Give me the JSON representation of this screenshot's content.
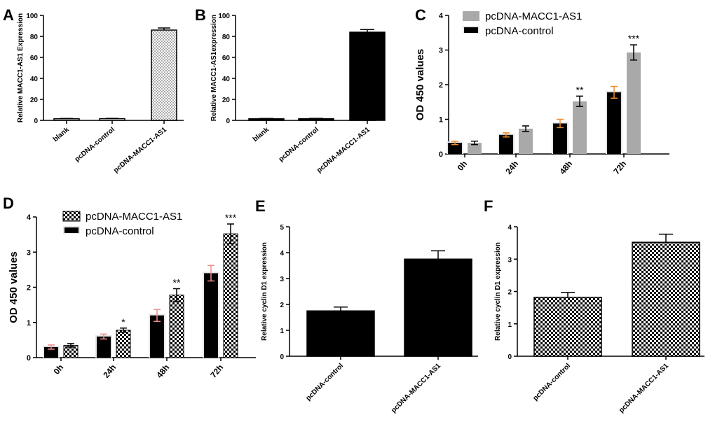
{
  "figure": {
    "panels": [
      "A",
      "B",
      "C",
      "D",
      "E",
      "F"
    ]
  },
  "colors": {
    "black_bar": "#000000",
    "gray_bar": "#a9a9a9",
    "orange_err": "#f28c28",
    "pink_err": "#f08c8c"
  },
  "chart_data": [
    {
      "id": "A",
      "type": "bar",
      "title": "",
      "ylabel": "Relative MACC1-AS1 Expression",
      "categories": [
        "blank",
        "pcDNA-control",
        "pcDNA-MACC1-AS1"
      ],
      "values": [
        1.5,
        1.6,
        86
      ],
      "errors": [
        0.3,
        0.3,
        2
      ],
      "ylim": [
        0,
        100
      ],
      "yticks": [
        "0",
        "20",
        "40",
        "60",
        "80",
        "100"
      ],
      "fill": "dotted"
    },
    {
      "id": "B",
      "type": "bar",
      "title": "",
      "ylabel": "Relative MACC1-AS1expression",
      "categories": [
        "blank",
        "pcDNA-control",
        "pcDNA-MACC1-AS1"
      ],
      "values": [
        1.5,
        1.6,
        84
      ],
      "errors": [
        0.3,
        0.3,
        2.5
      ],
      "ylim": [
        0,
        100
      ],
      "yticks": [
        "0",
        "20",
        "40",
        "60",
        "80",
        "100"
      ],
      "fill": "solid"
    },
    {
      "id": "C",
      "type": "bar",
      "title": "",
      "ylabel": "OD 450 values",
      "categories": [
        "0h",
        "24h",
        "48h",
        "72h"
      ],
      "legend": [
        "pcDNA-MACC1-AS1",
        "pcDNA-control"
      ],
      "series": [
        {
          "name": "pcDNA-control",
          "values": [
            0.32,
            0.55,
            0.88,
            1.78
          ],
          "errors": [
            0.05,
            0.06,
            0.12,
            0.17
          ]
        },
        {
          "name": "pcDNA-MACC1-AS1",
          "values": [
            0.32,
            0.73,
            1.52,
            2.93
          ],
          "errors": [
            0.05,
            0.08,
            0.15,
            0.22
          ]
        }
      ],
      "significance": [
        "",
        "",
        "**",
        "***"
      ],
      "ylim": [
        0,
        4
      ],
      "yticks": [
        "0",
        "1",
        "2",
        "3",
        "4"
      ]
    },
    {
      "id": "D",
      "type": "bar",
      "title": "",
      "ylabel": "OD 450 values",
      "categories": [
        "0h",
        "24h",
        "48h",
        "72h"
      ],
      "legend": [
        "pcDNA-MACC1-AS1",
        "pcDNA-control"
      ],
      "series": [
        {
          "name": "pcDNA-control",
          "values": [
            0.3,
            0.6,
            1.2,
            2.4
          ],
          "errors": [
            0.06,
            0.07,
            0.17,
            0.22
          ]
        },
        {
          "name": "pcDNA-MACC1-AS1",
          "values": [
            0.35,
            0.78,
            1.78,
            3.52
          ],
          "errors": [
            0.05,
            0.06,
            0.18,
            0.28
          ]
        }
      ],
      "significance": [
        "",
        "*",
        "**",
        "***"
      ],
      "ylim": [
        0,
        4
      ],
      "yticks": [
        "0",
        "1",
        "2",
        "3",
        "4"
      ]
    },
    {
      "id": "E",
      "type": "bar",
      "title": "",
      "ylabel": "Relative cyclin D1 expression",
      "categories": [
        "pcDNA-control",
        "pcDNA-MACC1-AS1"
      ],
      "values": [
        1.75,
        3.75
      ],
      "errors": [
        0.15,
        0.32
      ],
      "ylim": [
        0,
        5
      ],
      "yticks": [
        "0",
        "1",
        "2",
        "3",
        "4",
        "5"
      ],
      "fill": "solid"
    },
    {
      "id": "F",
      "type": "bar",
      "title": "",
      "ylabel": "Relative cyclin D1 expression",
      "categories": [
        "pcDNA-control",
        "pcDNA-MACC1-AS1"
      ],
      "values": [
        1.82,
        3.52
      ],
      "errors": [
        0.15,
        0.25
      ],
      "ylim": [
        0,
        4
      ],
      "yticks": [
        "0",
        "1",
        "2",
        "3",
        "4"
      ],
      "fill": "checker"
    }
  ]
}
